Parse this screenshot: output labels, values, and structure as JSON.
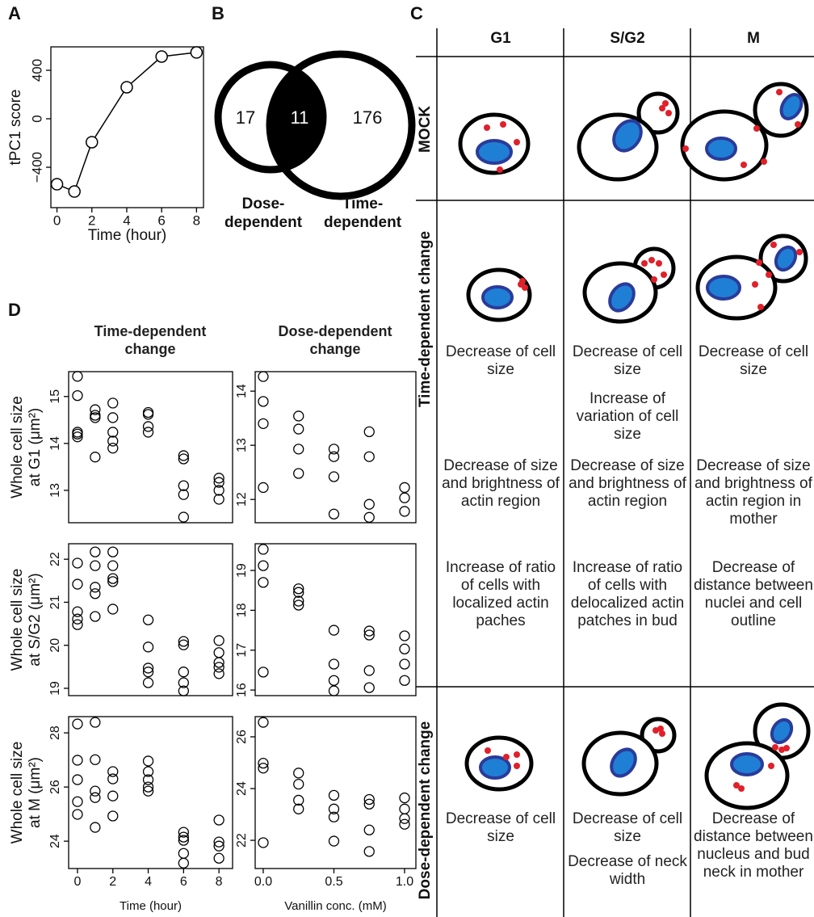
{
  "panel_labels": [
    "A",
    "B",
    "C",
    "D"
  ],
  "chart_data": [
    {
      "type": "line",
      "x": [
        0,
        1,
        2,
        4,
        6,
        8
      ],
      "values": [
        -540,
        -600,
        -193,
        260,
        513,
        547
      ],
      "xlim": [
        -0.35,
        8.4
      ],
      "ylim": [
        -733,
        593
      ],
      "xticks": [
        0,
        2,
        4,
        6,
        8
      ],
      "yticks": [
        {
          "value": -400,
          "label": "−400"
        },
        0,
        400
      ],
      "xlabel": "Time (hour)",
      "ylabel": "tPC1 score",
      "color": "#000000"
    },
    {
      "type": "venn",
      "sets": [
        {
          "name": [
            "Dose-",
            "dependent"
          ],
          "only": 17
        },
        {
          "name": [
            "Time-",
            "dependent"
          ],
          "only": 176
        }
      ],
      "overlap": 11
    },
    {
      "type": "scatter",
      "x": [
        0,
        0,
        0,
        0,
        0,
        1,
        1,
        1,
        1,
        2,
        2,
        2,
        2,
        2,
        4,
        4,
        4,
        4,
        6,
        6,
        6,
        6,
        6,
        8,
        8,
        8,
        8
      ],
      "values": [
        15.43,
        15.02,
        14.24,
        14.2,
        14.14,
        14.72,
        14.6,
        14.55,
        13.71,
        14.86,
        14.55,
        14.24,
        14.05,
        13.9,
        14.66,
        14.62,
        14.36,
        14.24,
        13.74,
        13.67,
        13.1,
        12.91,
        12.43,
        13.26,
        13.17,
        13.0,
        12.81
      ],
      "xlim": [
        -0.5,
        8.77
      ],
      "ylim": [
        12.31,
        15.53
      ],
      "yticks": [
        13,
        14,
        15
      ],
      "ylabel": [
        "Whole cell size",
        "at G1 (μm²)"
      ]
    },
    {
      "type": "scatter",
      "x": [
        0,
        0,
        0,
        0,
        0.25,
        0.25,
        0.25,
        0.25,
        0.5,
        0.5,
        0.5,
        0.5,
        0.75,
        0.75,
        0.75,
        0.75,
        1,
        1,
        1
      ],
      "values": [
        14.27,
        13.81,
        13.4,
        12.22,
        13.54,
        13.3,
        12.93,
        12.48,
        12.93,
        12.79,
        12.42,
        11.73,
        13.25,
        12.79,
        11.91,
        11.67,
        12.22,
        12.03,
        11.78
      ],
      "xlim": [
        -0.057,
        1.08
      ],
      "ylim": [
        11.57,
        14.36
      ],
      "yticks": [
        12,
        13,
        14
      ]
    },
    {
      "type": "scatter",
      "x": [
        0,
        0,
        0,
        0,
        0,
        1,
        1,
        1,
        1,
        1,
        2,
        2,
        2,
        2,
        2,
        4,
        4,
        4,
        4,
        4,
        6,
        6,
        6,
        6,
        6,
        8,
        8,
        8,
        8,
        8
      ],
      "values": [
        21.91,
        21.42,
        20.78,
        20.61,
        20.48,
        22.17,
        21.85,
        21.35,
        21.2,
        20.67,
        22.17,
        21.85,
        21.55,
        21.48,
        20.84,
        20.59,
        19.96,
        19.47,
        19.38,
        19.13,
        20.09,
        20.01,
        19.38,
        19.13,
        18.94,
        20.11,
        19.83,
        19.6,
        19.49,
        19.34
      ],
      "xlim": [
        -0.5,
        8.77
      ],
      "ylim": [
        18.83,
        22.36
      ],
      "yticks": [
        19,
        20,
        21,
        22
      ],
      "ylabel": [
        "Whole cell size",
        "at S/G2 (μm²)"
      ]
    },
    {
      "type": "scatter",
      "x": [
        0,
        0,
        0,
        0,
        0.25,
        0.25,
        0.25,
        0.25,
        0.5,
        0.5,
        0.5,
        0.5,
        0.75,
        0.75,
        0.75,
        0.75,
        1,
        1,
        1,
        1
      ],
      "values": [
        19.53,
        19.12,
        18.7,
        16.45,
        18.54,
        18.45,
        18.23,
        18.13,
        17.5,
        16.65,
        16.24,
        15.98,
        17.48,
        17.38,
        16.49,
        16.06,
        17.36,
        17.03,
        16.65,
        16.24
      ],
      "xlim": [
        -0.057,
        1.08
      ],
      "ylim": [
        15.86,
        19.67
      ],
      "yticks": [
        16,
        17,
        18,
        19
      ]
    },
    {
      "type": "scatter",
      "x": [
        0,
        0,
        0,
        0,
        0,
        1,
        1,
        1,
        1,
        1,
        2,
        2,
        2,
        2,
        4,
        4,
        4,
        4,
        4,
        6,
        6,
        6,
        6,
        6,
        8,
        8,
        8,
        8
      ],
      "values": [
        28.33,
        26.99,
        26.27,
        25.46,
        24.99,
        28.39,
        27.01,
        25.85,
        25.61,
        24.51,
        26.57,
        26.3,
        25.67,
        24.93,
        26.96,
        26.57,
        26.27,
        26.0,
        25.85,
        24.33,
        24.15,
        24.03,
        23.55,
        23.19,
        24.78,
        23.97,
        23.82,
        23.37
      ],
      "xlim": [
        -0.5,
        8.77
      ],
      "ylim": [
        22.99,
        28.6
      ],
      "yticks": [
        24,
        26,
        28
      ],
      "xticks": [
        0,
        2,
        4,
        6,
        8
      ],
      "xlabel": "Time (hour)",
      "ylabel": [
        "Whole cell size",
        "at M (μm²)"
      ]
    },
    {
      "type": "scatter",
      "x": [
        0,
        0,
        0,
        0,
        0.25,
        0.25,
        0.25,
        0.25,
        0.5,
        0.5,
        0.5,
        0.5,
        0.75,
        0.75,
        0.75,
        0.75,
        1,
        1,
        1,
        1
      ],
      "values": [
        26.56,
        24.98,
        24.79,
        21.91,
        24.6,
        24.17,
        23.55,
        23.21,
        23.74,
        23.21,
        22.9,
        21.97,
        23.58,
        23.4,
        22.4,
        21.57,
        23.64,
        23.21,
        22.84,
        22.62
      ],
      "xlim": [
        -0.057,
        1.08
      ],
      "ylim": [
        20.91,
        26.78
      ],
      "yticks": [
        22,
        24,
        26
      ],
      "xticks": [
        {
          "value": 0,
          "label": "0.0"
        },
        {
          "value": 0.5,
          "label": "0.5"
        },
        {
          "value": 1,
          "label": "1.0"
        }
      ],
      "xlabel": "Vanillin conc. (mM)"
    }
  ],
  "panel_d_column_titles": [
    "Time-dependent change",
    "Dose-dependent change"
  ],
  "panel_c": {
    "columns": [
      "G1",
      "S/G2",
      "M"
    ],
    "rows": [
      {
        "label": "MOCK"
      },
      {
        "label": "Time-dependent change",
        "cells": [
          [
            "Decrease of cell size",
            "Decrease of size and brightness of actin region",
            "Increase of ratio of cells with localized actin paches"
          ],
          [
            "Decrease of cell size",
            "Increase of variation of cell size",
            "Decrease of size and brightness of actin region",
            "Increase of ratio of cells with delocalized actin patches in bud"
          ],
          [
            "Decrease of cell size",
            "Decrease of size and brightness of actin region in mother",
            "Decrease of distance between nuclei and cell outline"
          ]
        ]
      },
      {
        "label": "Dose-dependent change",
        "cells": [
          [
            "Decrease of cell size"
          ],
          [
            "Decrease of cell size",
            "Decrease of neck width"
          ],
          [
            "Decrease of distance between nucleus and bud neck in mother"
          ]
        ]
      }
    ]
  }
}
